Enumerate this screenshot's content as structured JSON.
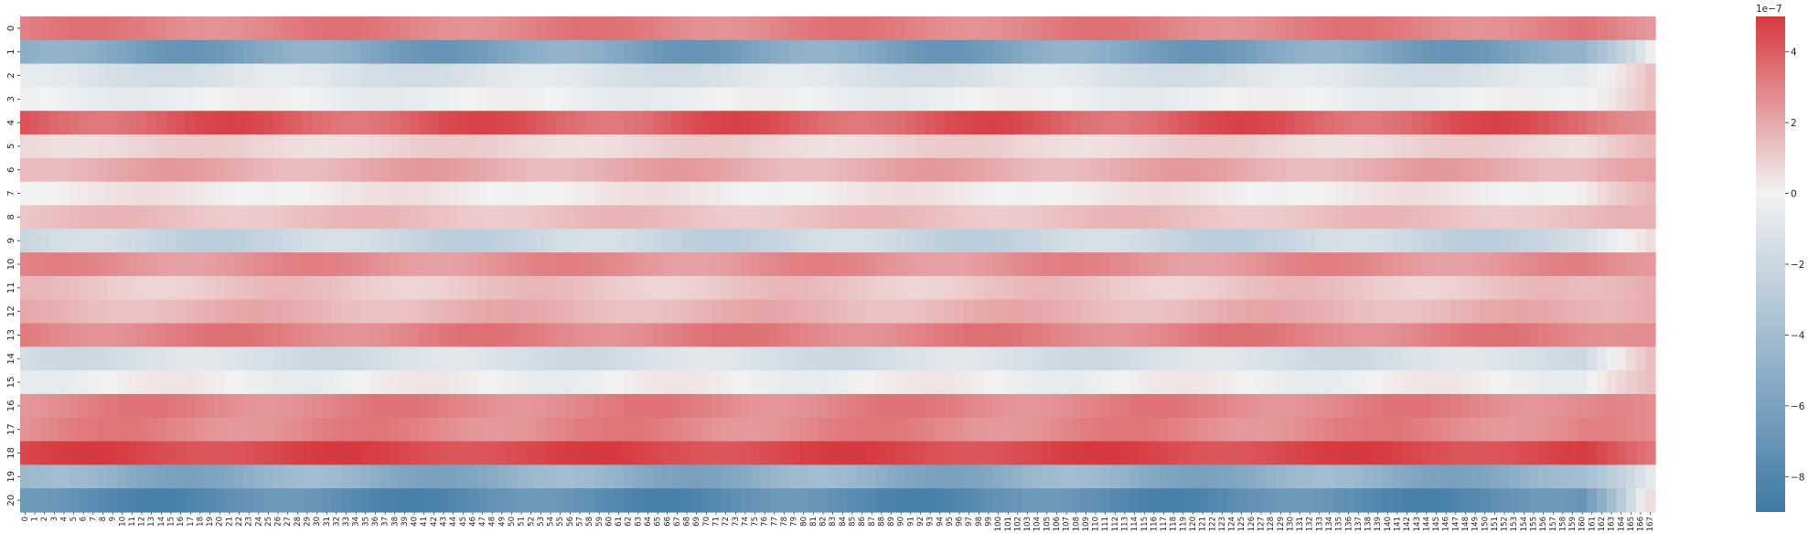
{
  "chart_data": {
    "type": "heatmap",
    "title": "",
    "xlabel": "",
    "ylabel": "",
    "n_cols": 168,
    "rows": [
      "0",
      "1",
      "2",
      "3",
      "4",
      "5",
      "6",
      "7",
      "8",
      "9",
      "10",
      "11",
      "12",
      "13",
      "14",
      "15",
      "16",
      "17",
      "18",
      "19",
      "20"
    ],
    "row_base_values": [
      2.6,
      -6.3,
      -2.2,
      -1.4,
      3.8,
      -0.2,
      1.2,
      -0.9,
      0.5,
      -3.0,
      2.1,
      0.3,
      0.9,
      2.6,
      -2.4,
      -1.2,
      2.5,
      2.4,
      4.5,
      -5.6,
      -7.8
    ],
    "row_wave_amplitude": [
      0.6,
      1.0,
      0.5,
      0.4,
      0.9,
      0.4,
      0.6,
      0.4,
      0.4,
      0.6,
      0.6,
      0.5,
      0.5,
      0.6,
      0.5,
      0.5,
      0.6,
      0.6,
      0.5,
      0.9,
      0.8
    ],
    "row_end_value": [
      1.8,
      -1.5,
      0.5,
      0.5,
      2.0,
      0.8,
      1.5,
      0.8,
      1.0,
      -0.5,
      1.8,
      1.2,
      1.2,
      2.2,
      0.5,
      0.5,
      2.2,
      2.2,
      3.0,
      -1.8,
      -0.5
    ],
    "colorbar": {
      "multiplier": "1e−7",
      "vmin": -9,
      "vmax": 5,
      "ticks": [
        4,
        2,
        0,
        -2,
        -4,
        -6,
        -8
      ],
      "tick_labels": [
        "4",
        "2",
        "0",
        "−2",
        "−4",
        "−6",
        "−8"
      ],
      "cmap_low": "#3f7aa6",
      "cmap_mid": "#f2f2f2",
      "cmap_high": "#d6393f"
    }
  }
}
